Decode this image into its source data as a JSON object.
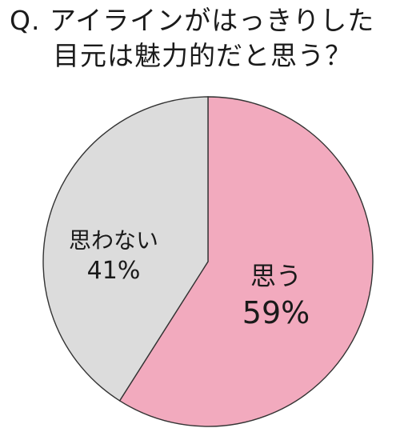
{
  "title": {
    "line1": "Q. アイラインがはっきりした",
    "line2": "目元は魅力的だと思う？"
  },
  "chart_data": {
    "type": "pie",
    "title": "Q. アイラインがはっきりした目元は魅力的だと思う？",
    "slices": [
      {
        "label": "思う",
        "value": 59,
        "value_label": "59%",
        "color": "#f2aabe"
      },
      {
        "label": "思わない",
        "value": 41,
        "value_label": "41%",
        "color": "#dcdcdc"
      }
    ],
    "start_angle_deg": 0,
    "direction": "clockwise",
    "stroke_color": "#333333"
  }
}
